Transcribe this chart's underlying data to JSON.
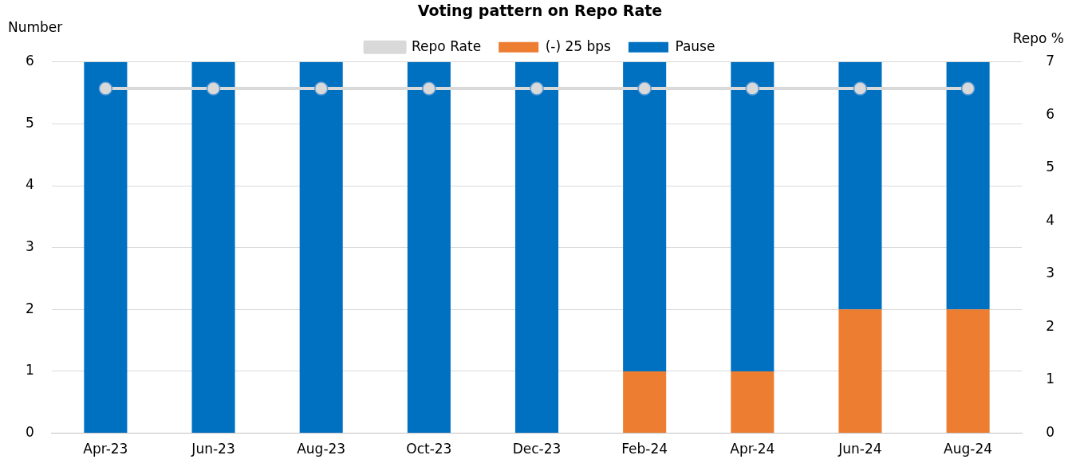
{
  "chart_data": {
    "type": "bar",
    "title": "Voting pattern on Repo Rate",
    "ylabel": "Number",
    "y2label": "Repo %",
    "categories": [
      "Apr-23",
      "Jun-23",
      "Aug-23",
      "Oct-23",
      "Dec-23",
      "Feb-24",
      "Apr-24",
      "Jun-24",
      "Aug-24"
    ],
    "stacked": true,
    "series": [
      {
        "name": "(-) 25 bps",
        "color": "#ed7d31",
        "values": [
          0,
          0,
          0,
          0,
          0,
          1,
          1,
          2,
          2
        ]
      },
      {
        "name": "Pause",
        "color": "#0070c0",
        "values": [
          6,
          6,
          6,
          6,
          6,
          5,
          5,
          4,
          4
        ]
      },
      {
        "name": "Repo Rate",
        "type": "line",
        "axis": "y2",
        "color": "#d9d9d9",
        "marker": "circle",
        "values": [
          6.5,
          6.5,
          6.5,
          6.5,
          6.5,
          6.5,
          6.5,
          6.5,
          6.5
        ]
      }
    ],
    "ylim": [
      0,
      6
    ],
    "yticks": [
      0,
      1,
      2,
      3,
      4,
      5,
      6
    ],
    "y2lim": [
      0,
      7
    ],
    "y2ticks": [
      0,
      1,
      2,
      3,
      4,
      5,
      6,
      7
    ],
    "grid": "y",
    "legend": "top"
  }
}
